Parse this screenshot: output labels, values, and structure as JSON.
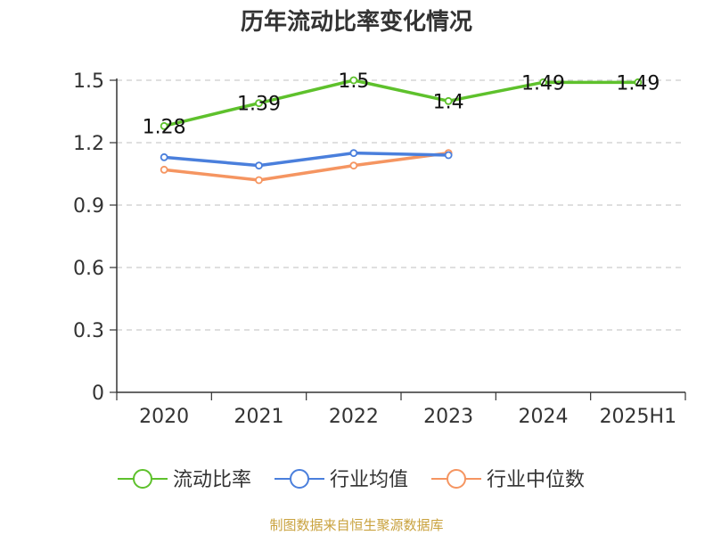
{
  "chart_data": {
    "type": "line",
    "title": "历年流动比率变化情况",
    "categories": [
      "2020",
      "2021",
      "2022",
      "2023",
      "2024",
      "2025H1"
    ],
    "ylim": [
      0,
      1.5
    ],
    "yticks": [
      0,
      0.3,
      0.6,
      0.9,
      1.2,
      1.5
    ],
    "ytick_labels": [
      "0",
      "0.3",
      "0.6",
      "0.9",
      "1.2",
      "1.5"
    ],
    "grid": true,
    "legend_position": "bottom",
    "series": [
      {
        "name": "流动比率",
        "color": "#5ec12c",
        "values": [
          1.28,
          1.39,
          1.5,
          1.4,
          1.49,
          1.49
        ],
        "labels": [
          "1.28",
          "1.39",
          "1.5",
          "1.4",
          "1.49",
          "1.49"
        ],
        "show_labels": true
      },
      {
        "name": "行业均值",
        "color": "#4a7fdc",
        "values": [
          1.13,
          1.09,
          1.15,
          1.14,
          null,
          null
        ],
        "show_labels": false
      },
      {
        "name": "行业中位数",
        "color": "#f59561",
        "values": [
          1.07,
          1.02,
          1.09,
          1.15,
          null,
          null
        ],
        "show_labels": false
      }
    ]
  },
  "source_text": "制图数据来自恒生聚源数据库"
}
